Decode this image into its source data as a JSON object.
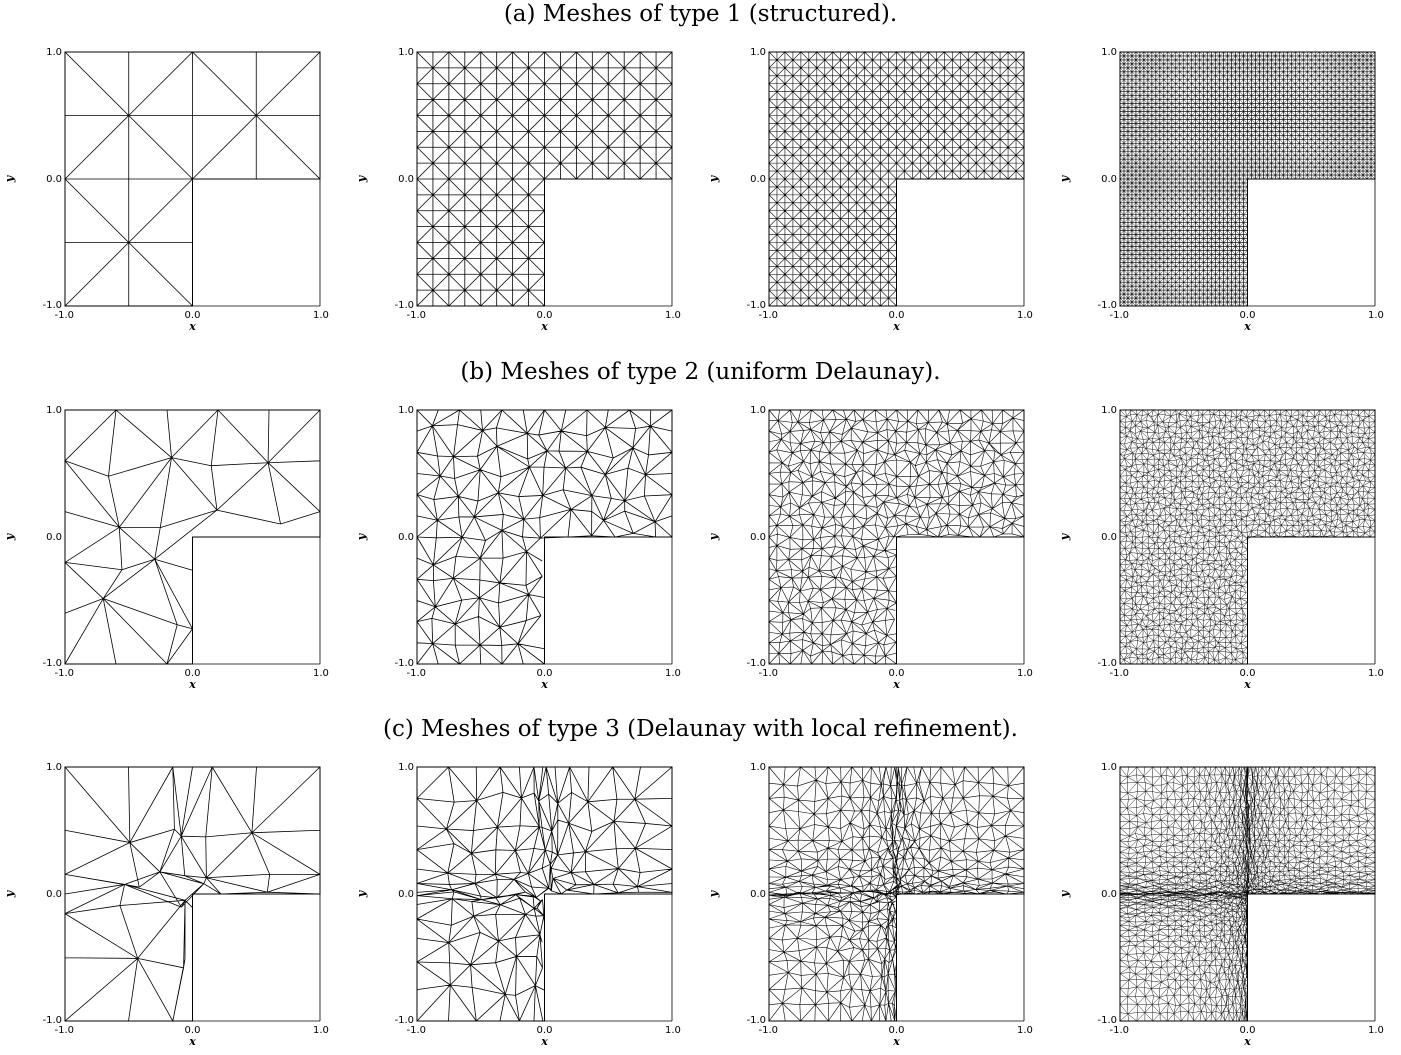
{
  "figure": {
    "rows": [
      {
        "title": "(a) Meshes of type 1 (structured).",
        "mesh_type": "structured",
        "panels": [
          {
            "divisions": 4
          },
          {
            "divisions": 16
          },
          {
            "divisions": 32
          },
          {
            "divisions": 64
          }
        ]
      },
      {
        "title": "(b) Meshes of type 2 (uniform Delaunay).",
        "mesh_type": "uniform-delaunay",
        "panels": [
          {
            "divisions": 5
          },
          {
            "divisions": 12
          },
          {
            "divisions": 24
          },
          {
            "divisions": 46
          }
        ]
      },
      {
        "title": "(c) Meshes of type 3 (Delaunay with local refinement).",
        "mesh_type": "delaunay-local-refinement",
        "panels": [
          {
            "divisions": 6
          },
          {
            "divisions": 13
          },
          {
            "divisions": 26
          },
          {
            "divisions": 50
          }
        ]
      }
    ],
    "axes": {
      "xlabel": "x",
      "ylabel": "y",
      "xlim": [
        -1.0,
        1.0
      ],
      "ylim": [
        -1.0,
        1.0
      ],
      "xticks": [
        "-1.0",
        "0.0",
        "1.0"
      ],
      "yticks": [
        "-1.0",
        "0.0",
        "1.0"
      ]
    },
    "domain": "L-shaped: [-1,1]^2 minus (0,1]x[-1,0)",
    "colors": {
      "edge": "#000000",
      "background": "#ffffff"
    }
  }
}
